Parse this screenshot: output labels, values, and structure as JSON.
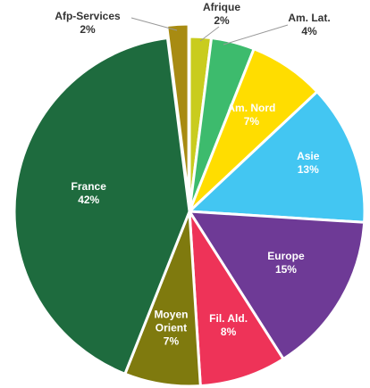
{
  "chart_data": {
    "type": "pie",
    "title": "",
    "slices": [
      {
        "label": "Afrique",
        "value_label": "2%",
        "value": 2,
        "color": "#c9cc1e",
        "text_color": "#333333"
      },
      {
        "label": "Am. Lat.",
        "value_label": "4%",
        "value": 4,
        "color": "#3dbb6d",
        "text_color": "#333333"
      },
      {
        "label": "Am. Nord",
        "value_label": "7%",
        "value": 7,
        "color": "#ffdd00",
        "text_color": "#ffffff"
      },
      {
        "label": "Asie",
        "value_label": "13%",
        "value": 13,
        "color": "#43c6f2",
        "text_color": "#ffffff"
      },
      {
        "label": "Europe",
        "value_label": "15%",
        "value": 15,
        "color": "#6e3a96",
        "text_color": "#ffffff"
      },
      {
        "label": "Fil. Ald.",
        "value_label": "8%",
        "value": 8,
        "color": "#ee3358",
        "text_color": "#ffffff"
      },
      {
        "label": "Moyen Orient",
        "value_label": "7%",
        "value": 7,
        "color": "#7f7a0e",
        "text_color": "#ffffff"
      },
      {
        "label": "France",
        "value_label": "42%",
        "value": 42,
        "color": "#1e6b3e",
        "text_color": "#ffffff"
      },
      {
        "label": "Afp-Services",
        "value_label": "2%",
        "value": 2,
        "color": "#a88b12",
        "text_color": "#333333"
      }
    ],
    "legend": "none",
    "callout_slices": [
      "Afrique",
      "Am. Lat.",
      "Afp-Services"
    ],
    "exploded_slices": [
      "Afp-Services"
    ]
  }
}
